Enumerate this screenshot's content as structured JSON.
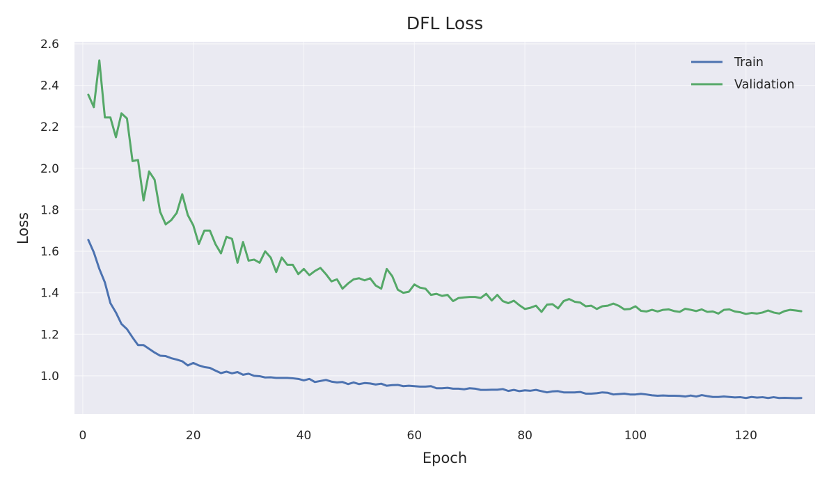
{
  "chart_data": {
    "type": "line",
    "title": "DFL Loss",
    "xlabel": "Epoch",
    "ylabel": "Loss",
    "xlim": [
      -1.5,
      132.5
    ],
    "ylim": [
      0.815,
      2.61
    ],
    "xticks": [
      0,
      20,
      40,
      60,
      80,
      100,
      120
    ],
    "yticks": [
      1.0,
      1.2,
      1.4,
      1.6,
      1.8,
      2.0,
      2.2,
      2.4,
      2.6
    ],
    "xtick_labels": [
      "0",
      "20",
      "40",
      "60",
      "80",
      "100",
      "120"
    ],
    "ytick_labels": [
      "1.0",
      "1.2",
      "1.4",
      "1.6",
      "1.8",
      "2.0",
      "2.2",
      "2.4",
      "2.6"
    ],
    "grid": true,
    "legend_position": "top-right",
    "background": "#eaeaf2",
    "series": [
      {
        "name": "Train",
        "color": "#4c72b0",
        "x": [
          1,
          2,
          3,
          4,
          5,
          6,
          7,
          8,
          9,
          10,
          11,
          12,
          13,
          14,
          15,
          16,
          17,
          18,
          19,
          20,
          21,
          22,
          23,
          24,
          25,
          26,
          27,
          28,
          29,
          30,
          31,
          32,
          33,
          34,
          35,
          36,
          37,
          38,
          39,
          40,
          41,
          42,
          43,
          44,
          45,
          46,
          47,
          48,
          49,
          50,
          51,
          52,
          53,
          54,
          55,
          56,
          57,
          58,
          59,
          60,
          61,
          62,
          63,
          64,
          65,
          66,
          67,
          68,
          69,
          70,
          71,
          72,
          73,
          74,
          75,
          76,
          77,
          78,
          79,
          80,
          81,
          82,
          83,
          84,
          85,
          86,
          87,
          88,
          89,
          90,
          91,
          92,
          93,
          94,
          95,
          96,
          97,
          98,
          99,
          100,
          101,
          102,
          103,
          104,
          105,
          106,
          107,
          108,
          109,
          110,
          111,
          112,
          113,
          114,
          115,
          116,
          117,
          118,
          119,
          120,
          121,
          122,
          123,
          124,
          125,
          126,
          127,
          128,
          129,
          130
        ],
        "values": [
          1.655,
          1.595,
          1.515,
          1.45,
          1.35,
          1.305,
          1.25,
          1.225,
          1.185,
          1.148,
          1.148,
          1.13,
          1.112,
          1.097,
          1.095,
          1.085,
          1.078,
          1.07,
          1.05,
          1.062,
          1.05,
          1.042,
          1.038,
          1.025,
          1.013,
          1.02,
          1.012,
          1.018,
          1.005,
          1.01,
          1.0,
          0.998,
          0.992,
          0.993,
          0.99,
          0.99,
          0.99,
          0.988,
          0.985,
          0.978,
          0.985,
          0.97,
          0.975,
          0.98,
          0.972,
          0.968,
          0.97,
          0.96,
          0.968,
          0.96,
          0.965,
          0.963,
          0.958,
          0.962,
          0.952,
          0.955,
          0.956,
          0.95,
          0.952,
          0.95,
          0.948,
          0.948,
          0.95,
          0.94,
          0.94,
          0.942,
          0.938,
          0.938,
          0.935,
          0.94,
          0.938,
          0.932,
          0.932,
          0.933,
          0.933,
          0.936,
          0.927,
          0.932,
          0.926,
          0.93,
          0.928,
          0.932,
          0.926,
          0.92,
          0.925,
          0.926,
          0.92,
          0.92,
          0.92,
          0.922,
          0.914,
          0.914,
          0.916,
          0.92,
          0.918,
          0.91,
          0.912,
          0.914,
          0.91,
          0.91,
          0.913,
          0.91,
          0.906,
          0.904,
          0.905,
          0.904,
          0.904,
          0.903,
          0.9,
          0.905,
          0.9,
          0.907,
          0.902,
          0.898,
          0.898,
          0.9,
          0.898,
          0.896,
          0.897,
          0.893,
          0.898,
          0.895,
          0.897,
          0.893,
          0.897,
          0.893,
          0.894,
          0.893,
          0.892,
          0.893
        ]
      },
      {
        "name": "Validation",
        "color": "#55a868",
        "x": [
          1,
          2,
          3,
          4,
          5,
          6,
          7,
          8,
          9,
          10,
          11,
          12,
          13,
          14,
          15,
          16,
          17,
          18,
          19,
          20,
          21,
          22,
          23,
          24,
          25,
          26,
          27,
          28,
          29,
          30,
          31,
          32,
          33,
          34,
          35,
          36,
          37,
          38,
          39,
          40,
          41,
          42,
          43,
          44,
          45,
          46,
          47,
          48,
          49,
          50,
          51,
          52,
          53,
          54,
          55,
          56,
          57,
          58,
          59,
          60,
          61,
          62,
          63,
          64,
          65,
          66,
          67,
          68,
          69,
          70,
          71,
          72,
          73,
          74,
          75,
          76,
          77,
          78,
          79,
          80,
          81,
          82,
          83,
          84,
          85,
          86,
          87,
          88,
          89,
          90,
          91,
          92,
          93,
          94,
          95,
          96,
          97,
          98,
          99,
          100,
          101,
          102,
          103,
          104,
          105,
          106,
          107,
          108,
          109,
          110,
          111,
          112,
          113,
          114,
          115,
          116,
          117,
          118,
          119,
          120,
          121,
          122,
          123,
          124,
          125,
          126,
          127,
          128,
          129,
          130
        ],
        "values": [
          2.355,
          2.295,
          2.52,
          2.245,
          2.245,
          2.15,
          2.265,
          2.24,
          2.035,
          2.04,
          1.845,
          1.985,
          1.945,
          1.79,
          1.73,
          1.75,
          1.785,
          1.875,
          1.775,
          1.725,
          1.635,
          1.7,
          1.7,
          1.635,
          1.59,
          1.67,
          1.66,
          1.545,
          1.645,
          1.555,
          1.56,
          1.545,
          1.6,
          1.57,
          1.5,
          1.57,
          1.535,
          1.535,
          1.49,
          1.515,
          1.485,
          1.505,
          1.52,
          1.49,
          1.455,
          1.465,
          1.42,
          1.445,
          1.465,
          1.47,
          1.46,
          1.47,
          1.435,
          1.42,
          1.515,
          1.48,
          1.415,
          1.4,
          1.405,
          1.44,
          1.425,
          1.42,
          1.39,
          1.395,
          1.385,
          1.39,
          1.36,
          1.375,
          1.378,
          1.38,
          1.38,
          1.375,
          1.395,
          1.363,
          1.39,
          1.36,
          1.35,
          1.362,
          1.34,
          1.322,
          1.328,
          1.338,
          1.308,
          1.343,
          1.345,
          1.325,
          1.36,
          1.37,
          1.357,
          1.353,
          1.335,
          1.338,
          1.322,
          1.335,
          1.338,
          1.348,
          1.337,
          1.32,
          1.322,
          1.335,
          1.313,
          1.31,
          1.318,
          1.31,
          1.318,
          1.32,
          1.312,
          1.308,
          1.323,
          1.318,
          1.312,
          1.32,
          1.308,
          1.31,
          1.3,
          1.318,
          1.32,
          1.31,
          1.306,
          1.298,
          1.303,
          1.3,
          1.305,
          1.315,
          1.305,
          1.3,
          1.312,
          1.318,
          1.315,
          1.311
        ]
      }
    ]
  }
}
